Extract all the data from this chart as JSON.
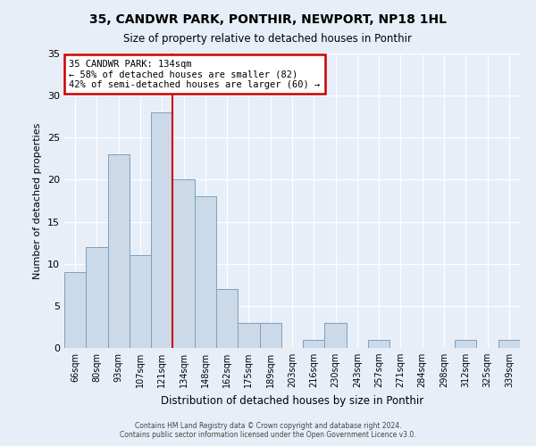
{
  "title": "35, CANDWR PARK, PONTHIR, NEWPORT, NP18 1HL",
  "subtitle": "Size of property relative to detached houses in Ponthir",
  "xlabel": "Distribution of detached houses by size in Ponthir",
  "ylabel": "Number of detached properties",
  "bin_labels": [
    "66sqm",
    "80sqm",
    "93sqm",
    "107sqm",
    "121sqm",
    "134sqm",
    "148sqm",
    "162sqm",
    "175sqm",
    "189sqm",
    "203sqm",
    "216sqm",
    "230sqm",
    "243sqm",
    "257sqm",
    "271sqm",
    "284sqm",
    "298sqm",
    "312sqm",
    "325sqm",
    "339sqm"
  ],
  "bar_heights": [
    9,
    12,
    23,
    11,
    28,
    20,
    18,
    7,
    3,
    3,
    0,
    1,
    3,
    0,
    1,
    0,
    0,
    0,
    1,
    0,
    1
  ],
  "bar_color": "#ccd9e8",
  "bar_edge_color": "#7aa0c0",
  "vline_x": 4.5,
  "vline_color": "#cc0000",
  "annotation_title": "35 CANDWR PARK: 134sqm",
  "annotation_line1": "← 58% of detached houses are smaller (82)",
  "annotation_line2": "42% of semi-detached houses are larger (60) →",
  "annotation_box_color": "#cc0000",
  "annotation_bg": "#ffffff",
  "ylim": [
    0,
    35
  ],
  "yticks": [
    0,
    5,
    10,
    15,
    20,
    25,
    30,
    35
  ],
  "footer1": "Contains HM Land Registry data © Crown copyright and database right 2024.",
  "footer2": "Contains public sector information licensed under the Open Government Licence v3.0.",
  "bg_color": "#e8eef8",
  "plot_bg_color": "#e8eef8",
  "grid_color": "#ffffff",
  "title_fontsize": 10,
  "subtitle_fontsize": 8.5
}
